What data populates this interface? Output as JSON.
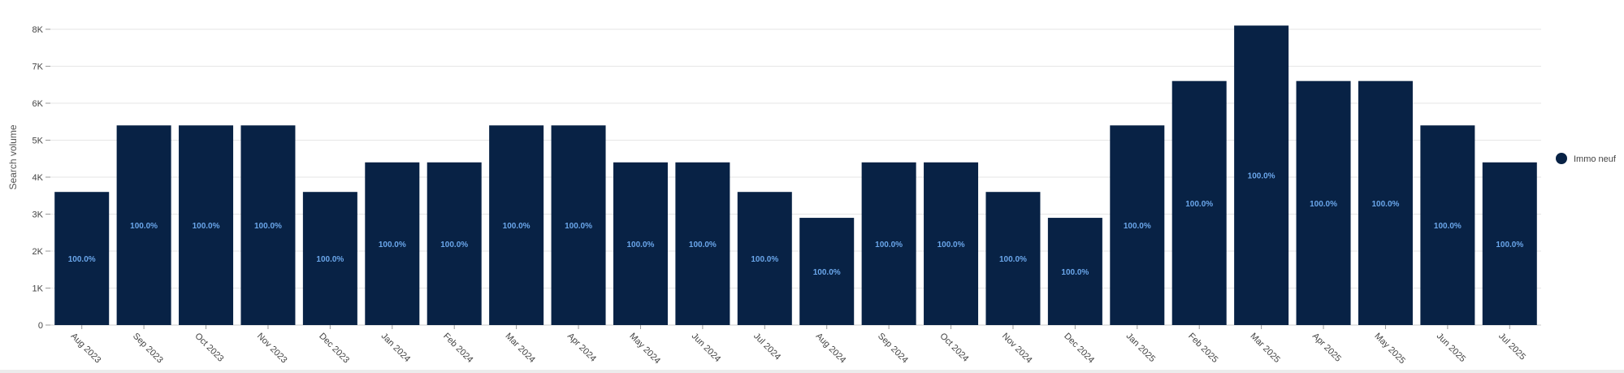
{
  "chart_data": {
    "type": "bar",
    "ylabel": "Search volume",
    "ylim": [
      0,
      8000
    ],
    "yticks": [
      0,
      1000,
      2000,
      3000,
      4000,
      5000,
      6000,
      7000,
      8000
    ],
    "ytick_labels": [
      "0",
      "1K",
      "2K",
      "3K",
      "4K",
      "5K",
      "6K",
      "7K",
      "8K"
    ],
    "grid": true,
    "legend_position": "right",
    "categories": [
      "Aug 2023",
      "Sep 2023",
      "Oct 2023",
      "Nov 2023",
      "Dec 2023",
      "Jan 2024",
      "Feb 2024",
      "Mar 2024",
      "Apr 2024",
      "May 2024",
      "Jun 2024",
      "Jul 2024",
      "Aug 2024",
      "Sep 2024",
      "Oct 2024",
      "Nov 2024",
      "Dec 2024",
      "Jan 2025",
      "Feb 2025",
      "Mar 2025",
      "Apr 2025",
      "May 2025",
      "Jun 2025",
      "Jul 2025"
    ],
    "series": [
      {
        "name": "Immo neuf",
        "color": "#082245",
        "label_color": "#6aa6ea",
        "values": [
          3600,
          5400,
          5400,
          5400,
          3600,
          4400,
          4400,
          5400,
          5400,
          4400,
          4400,
          3600,
          2900,
          4400,
          4400,
          3600,
          2900,
          5400,
          6600,
          8100,
          6600,
          6600,
          5400,
          4400
        ],
        "data_labels": [
          "100.0%",
          "100.0%",
          "100.0%",
          "100.0%",
          "100.0%",
          "100.0%",
          "100.0%",
          "100.0%",
          "100.0%",
          "100.0%",
          "100.0%",
          "100.0%",
          "100.0%",
          "100.0%",
          "100.0%",
          "100.0%",
          "100.0%",
          "100.0%",
          "100.0%",
          "100.0%",
          "100.0%",
          "100.0%",
          "100.0%",
          "100.0%"
        ]
      }
    ]
  }
}
